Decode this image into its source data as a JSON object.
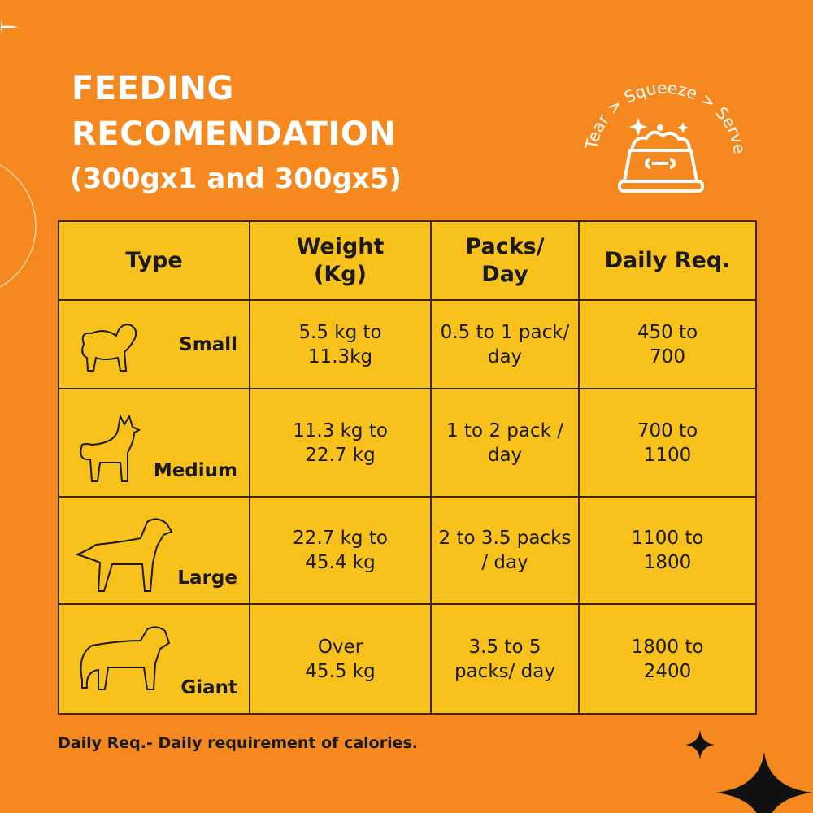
{
  "header": {
    "title_line1": "FEEDING",
    "title_line2": "RECOMENDATION",
    "subtitle": "(300gx1 and 300gx5)"
  },
  "badge": {
    "text": "Tear > Squeeze > Serve",
    "icon": "food-bowl-icon"
  },
  "table": {
    "columns": [
      "Type",
      "Weight (Kg)",
      "Packs/ Day",
      "Daily Req."
    ],
    "rows": [
      {
        "type": "Small",
        "weight": "5.5 kg to 11.3kg",
        "packs": "0.5 to 1 pack/ day",
        "daily": "450 to 700",
        "icon": "small-dog-icon"
      },
      {
        "type": "Medium",
        "weight": "11.3 kg to 22.7 kg",
        "packs": "1 to 2 pack / day",
        "daily": "700 to 1100",
        "icon": "medium-dog-icon"
      },
      {
        "type": "Large",
        "weight": "22.7 kg to 45.4 kg",
        "packs": "2 to 3.5 packs / day",
        "daily": "1100 to 1800",
        "icon": "large-dog-icon"
      },
      {
        "type": "Giant",
        "weight": "Over 45.5 kg",
        "packs": "3.5 to 5 packs/ day",
        "daily": "1800 to 2400",
        "icon": "giant-dog-icon"
      }
    ]
  },
  "footnote": "Daily Req.- Daily requirement of calories.",
  "colors": {
    "background": "#F5891F",
    "table": "#F8C11C",
    "text": "#1a1a1a"
  }
}
